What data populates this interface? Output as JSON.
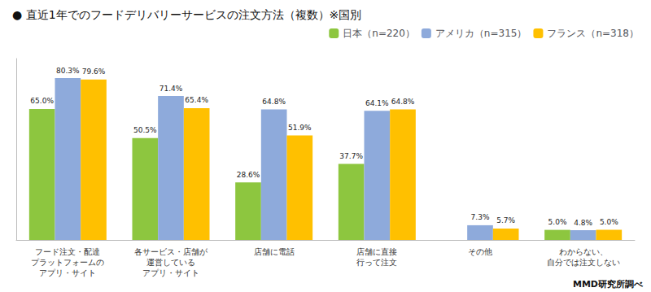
{
  "chart_data": {
    "type": "bar",
    "title": "● 直近1年でのフードデリバリーサービスの注文方法（複数）※国別",
    "categories": [
      "フード注文・配達\nプラットフォームの\nアプリ・サイト",
      "各サービス・店舗が\n運営している\nアプリ・サイト",
      "店舗に電話",
      "店舗に直接\n行って注文",
      "その他",
      "わからない、\n自分では注文しない"
    ],
    "series": [
      {
        "name": "日本（n=220）",
        "color": "#8DC63F",
        "values": [
          65.0,
          50.5,
          28.6,
          37.7,
          0.0,
          5.0
        ],
        "value_labels": [
          "65.0%",
          "50.5%",
          "28.6%",
          "37.7%",
          null,
          "5.0%"
        ]
      },
      {
        "name": "アメリカ（n=315）",
        "color": "#8EAADB",
        "values": [
          80.3,
          71.4,
          64.8,
          64.1,
          7.3,
          4.8
        ],
        "value_labels": [
          "80.3%",
          "71.4%",
          "64.8%",
          "64.1%",
          "7.3%",
          "4.8%"
        ]
      },
      {
        "name": "フランス（n=318）",
        "color": "#FFC000",
        "values": [
          79.6,
          65.4,
          51.9,
          64.8,
          5.7,
          5.0
        ],
        "value_labels": [
          "79.6%",
          "65.4%",
          "51.9%",
          "64.8%",
          "5.7%",
          "5.0%"
        ]
      }
    ],
    "ylim": [
      0,
      90
    ],
    "grid": false,
    "legend": "upper right",
    "data_labels": true,
    "tick_labels": "x",
    "annotations": [
      "MMD研究所調べ"
    ]
  }
}
